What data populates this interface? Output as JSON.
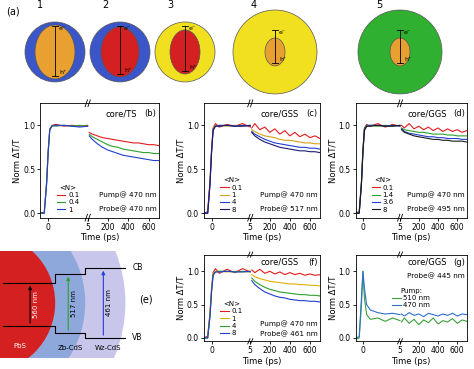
{
  "panel_a": {
    "label": "(a)",
    "structures": [
      {
        "number": "1",
        "electron": "e⁻",
        "hole": "h⁺"
      },
      {
        "number": "2",
        "electron": "e⁻",
        "hole": "h⁺"
      },
      {
        "number": "3",
        "electron": "e⁻",
        "hole": "h⁺"
      },
      {
        "number": "4",
        "electron": "e⁻",
        "hole": "h⁺"
      },
      {
        "number": "5",
        "electron": "e⁻",
        "hole": "h⁺"
      }
    ]
  },
  "panel_e": {
    "label": "(e)",
    "conduction_band": "CB",
    "valence_band": "VB",
    "layers": [
      "PbS",
      "Zb-CdS",
      "Wz-CdS"
    ],
    "transitions": [
      "560 nm",
      "517 nm",
      "461 nm"
    ]
  },
  "chart_data": [
    {
      "type": "line",
      "panel_label": "(b)",
      "sample": "core/TS",
      "pump": "Pump@ 470 nm",
      "probe": "Probe@ 470 nm",
      "x_label": "Time (ps)",
      "y_label": "Norm ΔT/T",
      "xlim": [
        -1,
        700
      ],
      "xticks": [
        0,
        5,
        200,
        400,
        600
      ],
      "ylim": [
        -0.05,
        1.25
      ],
      "yticks": [
        {
          "value": 0,
          "label": "0.0"
        },
        {
          "value": 0.5,
          "label": "0.5"
        },
        {
          "value": 1,
          "label": "1.0"
        }
      ],
      "grid": false,
      "legend": "lower left",
      "legend_title": "<N>",
      "x": [
        -1,
        -0.5,
        -0.2,
        0,
        0.2,
        0.5,
        1,
        2,
        3,
        4,
        5,
        10,
        20,
        50,
        100,
        150,
        200,
        250,
        300,
        350,
        400,
        450,
        500,
        550,
        600,
        650,
        700
      ],
      "series": [
        {
          "name": "0.1",
          "color": "#e41a1c",
          "values": [
            0.0,
            0.01,
            0.36,
            0.72,
            0.96,
            1.0,
            1.01,
            0.99,
            1.0,
            0.99,
            1.0,
            null,
            0.92,
            0.9,
            0.88,
            0.86,
            0.85,
            0.84,
            0.83,
            0.82,
            0.81,
            0.8,
            0.8,
            0.79,
            0.78,
            0.78,
            0.77
          ]
        },
        {
          "name": "0.4",
          "color": "#2ca02c",
          "values": [
            0.0,
            0.0,
            0.34,
            0.7,
            0.95,
            1.0,
            0.99,
            1.0,
            0.99,
            1.0,
            0.99,
            null,
            0.9,
            0.87,
            0.84,
            0.81,
            0.78,
            0.76,
            0.75,
            0.73,
            0.72,
            0.71,
            0.7,
            0.69,
            0.69,
            0.68,
            0.68
          ]
        },
        {
          "name": "1",
          "color": "#1f3fd0",
          "values": [
            0.01,
            0.0,
            0.33,
            0.69,
            0.95,
            0.99,
            1.0,
            1.0,
            0.99,
            0.98,
            0.99,
            null,
            0.88,
            0.84,
            0.79,
            0.75,
            0.72,
            0.7,
            0.68,
            0.66,
            0.65,
            0.64,
            0.63,
            0.62,
            0.61,
            0.6,
            0.6
          ]
        }
      ]
    },
    {
      "type": "line",
      "panel_label": "(c)",
      "sample": "core/GSS",
      "pump": "Pump@ 470 nm",
      "probe": "Probe@ 517 nm",
      "x_label": "Time (ps)",
      "y_label": "Norm ΔT/T",
      "xlim": [
        -1,
        700
      ],
      "xticks": [
        0,
        5,
        200,
        400,
        600
      ],
      "ylim": [
        -0.05,
        1.25
      ],
      "yticks": [
        {
          "value": 0,
          "label": "0.0"
        },
        {
          "value": 0.5,
          "label": "0.5"
        },
        {
          "value": 1,
          "label": "1.0"
        }
      ],
      "grid": false,
      "legend": "lower left",
      "legend_title": "<N>",
      "x": [
        -1,
        -0.5,
        -0.2,
        0,
        0.2,
        0.5,
        1,
        2,
        3,
        4,
        5,
        10,
        20,
        50,
        100,
        150,
        200,
        250,
        300,
        350,
        400,
        450,
        500,
        550,
        600,
        650,
        700
      ],
      "series": [
        {
          "name": "0.1",
          "color": "#e41a1c",
          "values": [
            0.0,
            0.02,
            0.37,
            0.73,
            0.97,
            1.02,
            0.98,
            1.01,
            0.99,
            1.02,
            0.98,
            null,
            0.97,
            1.02,
            0.95,
            0.98,
            0.92,
            0.96,
            0.9,
            0.94,
            0.88,
            0.92,
            0.87,
            0.9,
            0.86,
            0.88,
            0.85
          ]
        },
        {
          "name": "1",
          "color": "#d4a017",
          "values": [
            0.0,
            0.01,
            0.35,
            0.71,
            0.96,
            1.0,
            1.0,
            0.99,
            1.0,
            0.99,
            1.0,
            null,
            0.95,
            0.93,
            0.9,
            0.88,
            0.87,
            0.86,
            0.84,
            0.83,
            0.83,
            0.82,
            0.81,
            0.8,
            0.8,
            0.79,
            0.79
          ]
        },
        {
          "name": "4",
          "color": "#1f3fd0",
          "values": [
            0.01,
            0.0,
            0.34,
            0.7,
            0.95,
            0.99,
            1.0,
            1.0,
            0.99,
            1.0,
            0.99,
            null,
            0.93,
            0.9,
            0.87,
            0.84,
            0.82,
            0.8,
            0.79,
            0.78,
            0.77,
            0.76,
            0.75,
            0.75,
            0.74,
            0.74,
            0.73
          ]
        },
        {
          "name": "8",
          "color": "#1a1a70",
          "values": [
            0.0,
            0.0,
            0.33,
            0.69,
            0.94,
            0.99,
            0.99,
            1.0,
            0.99,
            0.99,
            1.0,
            null,
            0.92,
            0.88,
            0.84,
            0.81,
            0.79,
            0.77,
            0.75,
            0.74,
            0.73,
            0.72,
            0.71,
            0.71,
            0.7,
            0.7,
            0.69
          ]
        }
      ]
    },
    {
      "type": "line",
      "panel_label": "(d)",
      "sample": "core/GGS",
      "pump": "Pump@ 470 nm",
      "probe": "Probe@ 495 nm",
      "x_label": "Time (ps)",
      "y_label": "Norm ΔT/T",
      "xlim": [
        -1,
        700
      ],
      "xticks": [
        0,
        5,
        200,
        400,
        600
      ],
      "ylim": [
        -0.05,
        1.25
      ],
      "yticks": [
        {
          "value": 0,
          "label": "0.0"
        },
        {
          "value": 0.5,
          "label": "0.5"
        },
        {
          "value": 1,
          "label": "1.0"
        }
      ],
      "grid": false,
      "legend": "lower left",
      "legend_title": "<N>",
      "x": [
        -1,
        -0.5,
        -0.2,
        0,
        0.2,
        0.5,
        1,
        2,
        3,
        4,
        5,
        10,
        20,
        50,
        100,
        150,
        200,
        250,
        300,
        350,
        400,
        450,
        500,
        550,
        600,
        650,
        700
      ],
      "series": [
        {
          "name": "0.1",
          "color": "#e41a1c",
          "values": [
            0.0,
            0.02,
            0.36,
            0.72,
            0.97,
            1.01,
            0.99,
            1.02,
            0.98,
            1.01,
            0.99,
            null,
            1.0,
            0.97,
            1.02,
            0.96,
            0.99,
            0.95,
            0.98,
            0.94,
            0.97,
            0.93,
            0.96,
            0.93,
            0.95,
            0.92,
            0.94
          ]
        },
        {
          "name": "1.4",
          "color": "#2ca02c",
          "values": [
            0.0,
            0.01,
            0.35,
            0.71,
            0.96,
            1.0,
            1.0,
            0.99,
            1.0,
            0.99,
            1.0,
            null,
            0.97,
            0.95,
            0.94,
            0.93,
            0.92,
            0.92,
            0.91,
            0.9,
            0.9,
            0.9,
            0.89,
            0.89,
            0.88,
            0.88,
            0.88
          ]
        },
        {
          "name": "3.6",
          "color": "#1f3fd0",
          "values": [
            0.01,
            0.0,
            0.34,
            0.7,
            0.95,
            0.99,
            1.0,
            1.0,
            0.99,
            1.0,
            0.99,
            null,
            0.96,
            0.93,
            0.91,
            0.9,
            0.89,
            0.88,
            0.87,
            0.87,
            0.86,
            0.86,
            0.85,
            0.85,
            0.85,
            0.84,
            0.84
          ]
        },
        {
          "name": "8",
          "color": "#1a1a1a",
          "values": [
            0.0,
            0.0,
            0.33,
            0.69,
            0.94,
            0.99,
            0.99,
            1.0,
            0.99,
            0.99,
            1.0,
            null,
            0.95,
            0.92,
            0.9,
            0.88,
            0.87,
            0.86,
            0.85,
            0.84,
            0.84,
            0.83,
            0.83,
            0.82,
            0.82,
            0.82,
            0.81
          ]
        }
      ]
    },
    {
      "type": "line",
      "panel_label": "(f)",
      "sample": "core/GSS",
      "pump": "Pump@ 470 nm",
      "probe": "Probe@ 461 nm",
      "x_label": "Time (ps)",
      "y_label": "Norm ΔT/T",
      "xlim": [
        -1,
        700
      ],
      "xticks": [
        0,
        5,
        200,
        400,
        600
      ],
      "ylim": [
        -0.05,
        1.25
      ],
      "yticks": [
        {
          "value": 0,
          "label": "0.0"
        },
        {
          "value": 0.5,
          "label": "0.5"
        },
        {
          "value": 1,
          "label": "1.0"
        }
      ],
      "grid": false,
      "legend": "lower left",
      "legend_title": "<N>",
      "x": [
        -1,
        -0.5,
        -0.2,
        0,
        0.2,
        0.5,
        1,
        2,
        3,
        4,
        5,
        10,
        20,
        50,
        100,
        150,
        200,
        250,
        300,
        350,
        400,
        450,
        500,
        550,
        600,
        650,
        700
      ],
      "series": [
        {
          "name": "0.1",
          "color": "#e41a1c",
          "values": [
            0.0,
            0.03,
            0.38,
            0.75,
            0.98,
            1.04,
            0.97,
            1.03,
            0.98,
            1.04,
            0.99,
            null,
            1.02,
            0.98,
            1.03,
            0.97,
            1.0,
            0.96,
            0.99,
            0.95,
            0.98,
            0.95,
            0.97,
            0.94,
            0.96,
            0.94,
            0.95
          ]
        },
        {
          "name": "1",
          "color": "#e0b000",
          "values": [
            0.0,
            0.01,
            0.35,
            0.71,
            0.96,
            1.0,
            1.0,
            0.99,
            1.0,
            0.99,
            1.0,
            null,
            0.95,
            0.92,
            0.89,
            0.87,
            0.85,
            0.84,
            0.83,
            0.82,
            0.81,
            0.81,
            0.8,
            0.8,
            0.79,
            0.79,
            0.78
          ]
        },
        {
          "name": "4",
          "color": "#2ca02c",
          "values": [
            0.01,
            0.0,
            0.34,
            0.7,
            0.95,
            0.99,
            1.0,
            1.0,
            0.99,
            1.0,
            0.99,
            null,
            0.9,
            0.85,
            0.8,
            0.76,
            0.73,
            0.71,
            0.69,
            0.68,
            0.67,
            0.66,
            0.65,
            0.65,
            0.64,
            0.64,
            0.63
          ]
        },
        {
          "name": "8",
          "color": "#1f3fd0",
          "values": [
            0.0,
            0.0,
            0.33,
            0.69,
            0.94,
            0.99,
            0.99,
            1.0,
            0.99,
            0.99,
            1.0,
            null,
            0.86,
            0.8,
            0.74,
            0.69,
            0.66,
            0.63,
            0.61,
            0.6,
            0.58,
            0.57,
            0.56,
            0.56,
            0.55,
            0.55,
            0.54
          ]
        }
      ]
    },
    {
      "type": "line",
      "panel_label": "(g)",
      "sample": "core/GGS",
      "probe": "Probe@ 445 nm",
      "x_label": "Time (ps)",
      "y_label": "Norm ΔT/T",
      "xlim": [
        -1,
        700
      ],
      "xticks": [
        0,
        5,
        200,
        400,
        600
      ],
      "ylim": [
        -0.05,
        1.25
      ],
      "yticks": [
        {
          "value": 0,
          "label": "0.0"
        },
        {
          "value": 0.5,
          "label": "0.5"
        },
        {
          "value": 1,
          "label": "1.0"
        }
      ],
      "grid": false,
      "legend": "center",
      "legend_title": "Pump:",
      "x": [
        -1,
        -0.5,
        -0.2,
        0,
        0.2,
        0.5,
        1,
        2,
        3,
        4,
        5,
        10,
        20,
        50,
        100,
        150,
        200,
        250,
        300,
        350,
        400,
        450,
        500,
        550,
        600,
        650,
        700
      ],
      "series": [
        {
          "name": "510 nm",
          "color": "#3aa03a",
          "values": [
            -0.02,
            0.0,
            0.5,
            1.0,
            0.6,
            0.35,
            0.28,
            0.3,
            0.25,
            0.3,
            0.26,
            null,
            0.24,
            0.3,
            0.22,
            0.28,
            0.2,
            0.27,
            0.23,
            0.3,
            0.21,
            0.26,
            0.24,
            0.29,
            0.22,
            0.27,
            0.25
          ]
        },
        {
          "name": "470 nm",
          "color": "#2f6fd0",
          "values": [
            0.0,
            0.02,
            0.6,
            1.0,
            0.75,
            0.5,
            0.42,
            0.38,
            0.36,
            0.37,
            0.35,
            null,
            0.36,
            0.33,
            0.38,
            0.34,
            0.36,
            0.32,
            0.37,
            0.35,
            0.33,
            0.36,
            0.34,
            0.37,
            0.33,
            0.36,
            0.35
          ]
        }
      ]
    }
  ]
}
